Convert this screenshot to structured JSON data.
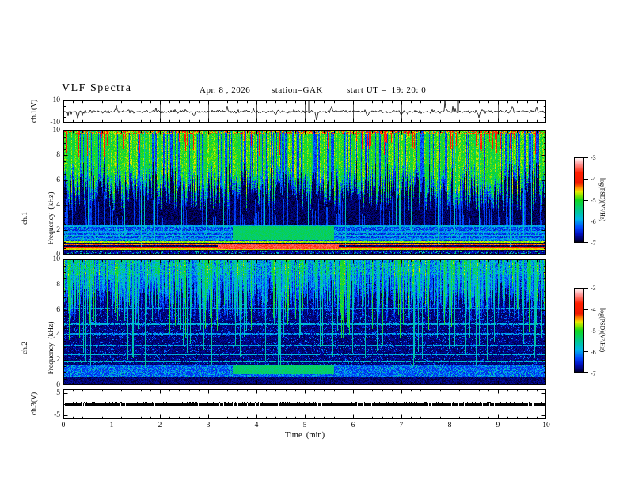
{
  "title": {
    "main": "VLF Spectra",
    "date": "Apr. 8 , 2026",
    "station": "station=GAK",
    "start_ut": "start UT =  19: 20: 0"
  },
  "axes": {
    "time": {
      "label": "Time  (min)",
      "range": [
        0,
        10
      ],
      "major_ticks": [
        0,
        1,
        2,
        3,
        4,
        5,
        6,
        7,
        8,
        9,
        10
      ],
      "minor_step": 0.2
    },
    "ch1_voltage": {
      "label": "ch.1(V)",
      "range": [
        -10,
        10
      ],
      "tick_values": [
        10,
        -10
      ],
      "tick_labels": [
        "10",
        "-10"
      ]
    },
    "ch1_freq": {
      "label_channel": "ch.1",
      "label_axis": "Frequency  (kHz)",
      "range": [
        0,
        10
      ],
      "major_ticks": [
        0,
        2,
        4,
        6,
        8,
        10
      ],
      "minor_step": 0.5
    },
    "ch2_freq": {
      "label_channel": "ch.2",
      "label_axis": "Frequency  (kHz)",
      "range": [
        0,
        10
      ],
      "major_ticks": [
        0,
        2,
        4,
        6,
        8,
        10
      ],
      "minor_step": 0.5
    },
    "ch3_voltage": {
      "label": "ch.3(V)",
      "range": [
        -5,
        5
      ],
      "tick_values": [
        5,
        -5
      ],
      "tick_labels": [
        "5",
        "-5"
      ]
    }
  },
  "colorbar": {
    "label": "log(PSD)(V²/Hz)",
    "tick_labels": [
      "-3",
      "-4",
      "-5",
      "-6",
      "-7"
    ],
    "range": [
      -7,
      -3
    ]
  },
  "colormap": {
    "stops": [
      [
        0.0,
        "#000010"
      ],
      [
        0.0375,
        "#000060"
      ],
      [
        0.1,
        "#0010c0"
      ],
      [
        0.175,
        "#0048ff"
      ],
      [
        0.275,
        "#00b8e8"
      ],
      [
        0.375,
        "#00c890"
      ],
      [
        0.5,
        "#10d820"
      ],
      [
        0.55,
        "#80e400"
      ],
      [
        0.6,
        "#e8e800"
      ],
      [
        0.64,
        "#ff9800"
      ],
      [
        0.7,
        "#f01800"
      ],
      [
        0.825,
        "#ff2000"
      ],
      [
        0.925,
        "#ff9898"
      ],
      [
        1.0,
        "#ffffff"
      ]
    ]
  },
  "chart_data": [
    {
      "panel": "ch1-waveform",
      "type": "line",
      "x_range_min": [
        0,
        10
      ],
      "y_range_v": [
        -10,
        10
      ],
      "description": "broadband noise around 0 V, ~±2 V, occasional impulses",
      "noise_amplitude_v": 1.5,
      "spikes": [
        {
          "t": 0.3,
          "v": -5
        },
        {
          "t": 1.1,
          "v": 4
        },
        {
          "t": 2.7,
          "v": -4
        },
        {
          "t": 3.4,
          "v": 3.5
        },
        {
          "t": 4.4,
          "v": -4
        },
        {
          "t": 5.25,
          "v": -8
        },
        {
          "t": 5.55,
          "v": 4
        },
        {
          "t": 6.3,
          "v": -5
        },
        {
          "t": 7.0,
          "v": -4
        },
        {
          "t": 7.9,
          "v": 6
        },
        {
          "t": 8.6,
          "v": -5
        },
        {
          "t": 9.3,
          "v": 5
        },
        {
          "t": 9.8,
          "v": 4
        }
      ],
      "gray_event_markers_min": [
        5.08,
        8.17
      ]
    },
    {
      "panel": "ch1-spectrogram",
      "type": "heatmap",
      "t_range_min": [
        0,
        10
      ],
      "f_range_khz": [
        0,
        10
      ],
      "psd_log_range": [
        -7,
        -3
      ],
      "features": {
        "background": {
          "v": -6.85,
          "noise": 0.3
        },
        "upper_streaks": {
          "density": 0.78,
          "f_bottom_min": 4.8,
          "f_bottom_max": 7.6,
          "v": -5.0,
          "noise": 0.5,
          "fade": 1.3
        },
        "red_columns": {
          "density": 0.1,
          "max_depth": 1.8,
          "v": -3.8
        },
        "top_edge": {
          "f": 9.8,
          "p_red": 0.22,
          "red_v": -3.85,
          "p_yellow": 0.25,
          "yellow_v": -4.55
        },
        "blue_vlines": {
          "density": 0.2,
          "f_low": 1.1,
          "top_min": 2.8,
          "top_max": 6.6,
          "v": -6.35,
          "noise": 0.3
        },
        "cyan_vlines": {
          "density": 0.05,
          "f_bottom_min": 0.4,
          "f_bottom_max": 2.5,
          "v": -5.75
        },
        "speckle_band": {
          "f0": 1.0,
          "f1": 2.45,
          "v": -6.55,
          "amp": 1.25
        },
        "hlines": [
          {
            "f": 2.35,
            "v": -5.95
          },
          {
            "f": 1.9,
            "v": -6.0
          },
          {
            "f": 1.55,
            "v": -5.9
          },
          {
            "f": 1.28,
            "v": -6.05
          },
          {
            "f": 1.03,
            "v": -4.75,
            "w": 0.06
          },
          {
            "f": 0.85,
            "v": -4.35,
            "w": 0.06
          },
          {
            "f": 0.62,
            "v": -3.78,
            "w": 0.07
          },
          {
            "f": 0.45,
            "v": -4.6,
            "w": 0.06
          }
        ],
        "patch": {
          "t0": 3.5,
          "t1": 5.6,
          "f0": 1.2,
          "f1": 2.3,
          "v": -5.3,
          "noise": 0.35
        },
        "hot_blob": {
          "t0": 3.2,
          "t1": 5.7,
          "f0": 0.45,
          "f1": 0.95,
          "v": -3.55,
          "noise": 0.25
        },
        "bottom_band": {
          "f1": 0.38,
          "v": -6.7,
          "noise": 0.4,
          "sparkle_p": 0.18,
          "sparkle_v": -5.6
        }
      }
    },
    {
      "panel": "ch2-spectrogram",
      "type": "heatmap",
      "t_range_min": [
        0,
        10
      ],
      "f_range_khz": [
        0,
        10
      ],
      "psd_log_range": [
        -7,
        -3
      ],
      "features": {
        "background": {
          "v": -6.8,
          "noise": 0.3
        },
        "upper_stripes": {
          "density": 0.85,
          "f_bottom_min": 6.0,
          "f_bottom_max": 8.6,
          "v_min": -6.35,
          "v_spread": 0.9,
          "fade": 0.9
        },
        "green_streaks": {
          "density": 0.09,
          "f_bottom_min": 3.5,
          "f_bottom_max": 6.5,
          "v": -5.1
        },
        "cyan_vlines": {
          "density": 0.12,
          "f_bottom_min": 1.5,
          "f_bottom_max": 5.5,
          "v": -5.65
        },
        "top_boost": {
          "f": 8.8,
          "amount": 0.35
        },
        "hlines": [
          {
            "f": 6.15,
            "v": -5.95,
            "p": 0.8
          },
          {
            "f": 4.9,
            "v": -5.9,
            "p": 0.85
          },
          {
            "f": 4.1,
            "v": -6.0,
            "p": 0.8
          },
          {
            "f": 3.2,
            "v": -5.9,
            "p": 0.85
          },
          {
            "f": 2.5,
            "v": -5.85,
            "p": 0.9
          },
          {
            "f": 1.9,
            "v": -5.75,
            "p": 0.9
          }
        ],
        "mid_speckle": {
          "f0": 1.6,
          "f1": 6.5,
          "p": 0.1,
          "v": -6.25
        },
        "speckle_band": {
          "f0": 0.68,
          "f1": 1.6,
          "v": -6.45,
          "amp": 1.15
        },
        "patch": {
          "t0": 3.5,
          "t1": 5.6,
          "f0": 0.9,
          "f1": 1.6,
          "v": -5.35,
          "noise": 0.3
        },
        "low_band": {
          "f0": 0.26,
          "f1": 0.62,
          "v": -4.85,
          "noise": 0.35
        },
        "red_line": {
          "f": 0.1,
          "v": -3.8,
          "w": 0.05
        },
        "bottom_band": {
          "f1": 0.06,
          "v": -6.95,
          "noise": 0.1,
          "sparkle_p": 0,
          "sparkle_v": -7
        }
      }
    },
    {
      "panel": "ch3-waveform",
      "type": "line",
      "x_range_min": [
        0,
        10
      ],
      "y_range_v": [
        -5,
        5
      ],
      "description": "flat thick black trace at 0 V",
      "value_v": 0
    }
  ]
}
